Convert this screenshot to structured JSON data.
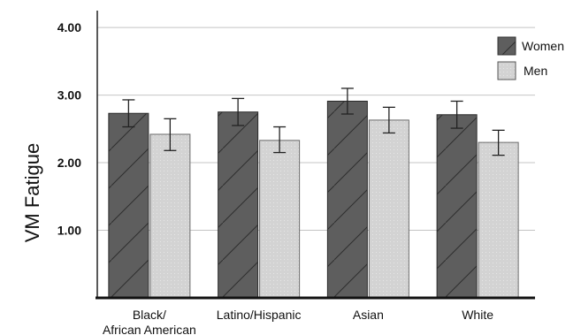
{
  "chart_data": {
    "type": "bar",
    "categories": [
      [
        "Black/",
        "African American"
      ],
      [
        "Latino/Hispanic"
      ],
      [
        "Asian"
      ],
      [
        "White"
      ]
    ],
    "series": [
      {
        "name": "Women",
        "values": [
          2.73,
          2.75,
          2.91,
          2.71
        ],
        "error_low": [
          2.53,
          2.55,
          2.72,
          2.51
        ],
        "error_high": [
          2.93,
          2.95,
          3.1,
          2.91
        ],
        "fill": "#5e5e5e",
        "pattern": "diagonal-hatch"
      },
      {
        "name": "Men",
        "values": [
          2.42,
          2.33,
          2.63,
          2.3
        ],
        "error_low": [
          2.18,
          2.15,
          2.44,
          2.11
        ],
        "error_high": [
          2.65,
          2.53,
          2.82,
          2.48
        ],
        "fill": "#d2d2d2",
        "pattern": "light-dots"
      }
    ],
    "y_ticks": [
      "1.00",
      "2.00",
      "3.00",
      "4.00"
    ],
    "ylabel": "VM Fatigue",
    "xlabel": "",
    "ylim": [
      0,
      4.25
    ],
    "grid": true,
    "legend_position": "top-right"
  }
}
